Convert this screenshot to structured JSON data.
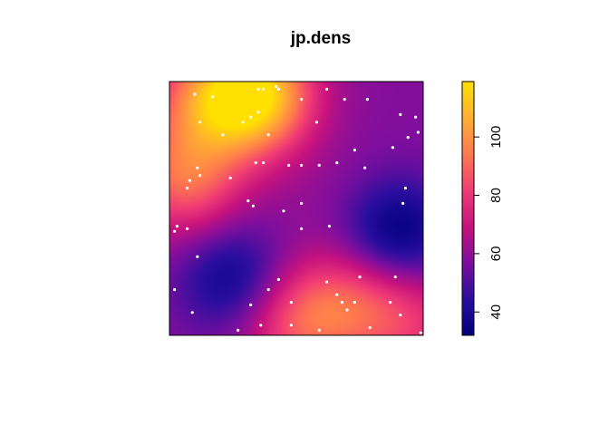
{
  "chart_data": {
    "type": "heatmap",
    "title": "jp.dens",
    "xlabel": "",
    "ylabel": "",
    "axes_shown": false,
    "colorbar": {
      "position": "right",
      "range": [
        32,
        119
      ],
      "ticks": [
        40,
        60,
        80,
        100
      ],
      "tick_labels": [
        "40",
        "60",
        "80",
        "100"
      ],
      "palette": [
        "#00007F",
        "#2A0E9E",
        "#7D0E9E",
        "#C7127E",
        "#F03C74",
        "#FF7A4E",
        "#FFAE32",
        "#FFE000"
      ]
    },
    "points": {
      "marker": "small white dot",
      "color": "#FFFFFF",
      "count": 68,
      "coordinates": [
        [
          0.42,
          0.98
        ],
        [
          0.35,
          0.97
        ],
        [
          0.37,
          0.97
        ],
        [
          0.43,
          0.97
        ],
        [
          0.1,
          0.95
        ],
        [
          0.17,
          0.94
        ],
        [
          0.62,
          0.97
        ],
        [
          0.69,
          0.93
        ],
        [
          0.78,
          0.93
        ],
        [
          0.52,
          0.93
        ],
        [
          0.97,
          0.86
        ],
        [
          0.91,
          0.87
        ],
        [
          0.12,
          0.84
        ],
        [
          0.29,
          0.84
        ],
        [
          0.32,
          0.86
        ],
        [
          0.35,
          0.88
        ],
        [
          0.58,
          0.84
        ],
        [
          0.21,
          0.79
        ],
        [
          0.39,
          0.79
        ],
        [
          0.98,
          0.8
        ],
        [
          0.94,
          0.78
        ],
        [
          0.88,
          0.74
        ],
        [
          0.73,
          0.73
        ],
        [
          0.34,
          0.68
        ],
        [
          0.37,
          0.68
        ],
        [
          0.47,
          0.67
        ],
        [
          0.52,
          0.67
        ],
        [
          0.59,
          0.67
        ],
        [
          0.66,
          0.68
        ],
        [
          0.11,
          0.66
        ],
        [
          0.12,
          0.63
        ],
        [
          0.24,
          0.62
        ],
        [
          0.77,
          0.66
        ],
        [
          0.08,
          0.61
        ],
        [
          0.07,
          0.58
        ],
        [
          0.93,
          0.58
        ],
        [
          0.31,
          0.53
        ],
        [
          0.33,
          0.51
        ],
        [
          0.52,
          0.52
        ],
        [
          0.45,
          0.49
        ],
        [
          0.92,
          0.52
        ],
        [
          0.63,
          0.43
        ],
        [
          0.52,
          0.42
        ],
        [
          0.03,
          0.43
        ],
        [
          0.07,
          0.42
        ],
        [
          0.02,
          0.41
        ],
        [
          0.11,
          0.31
        ],
        [
          0.75,
          0.23
        ],
        [
          0.89,
          0.23
        ],
        [
          0.43,
          0.22
        ],
        [
          0.62,
          0.21
        ],
        [
          0.66,
          0.16
        ],
        [
          0.02,
          0.18
        ],
        [
          0.39,
          0.18
        ],
        [
          0.68,
          0.13
        ],
        [
          0.73,
          0.13
        ],
        [
          0.87,
          0.13
        ],
        [
          0.48,
          0.13
        ],
        [
          0.09,
          0.09
        ],
        [
          0.36,
          0.04
        ],
        [
          0.48,
          0.04
        ],
        [
          0.91,
          0.08
        ],
        [
          0.79,
          0.03
        ],
        [
          0.99,
          0.01
        ],
        [
          0.27,
          0.02
        ],
        [
          0.59,
          0.02
        ],
        [
          0.7,
          0.1
        ],
        [
          0.32,
          0.12
        ]
      ]
    },
    "density_surface": {
      "description_free": true,
      "peaks": [
        {
          "x": 0.33,
          "y": 0.95,
          "value": 119
        },
        {
          "x": 0.06,
          "y": 0.62,
          "value": 90
        },
        {
          "x": 0.5,
          "y": 0.05,
          "value": 84
        },
        {
          "x": 0.72,
          "y": 0.12,
          "value": 80
        },
        {
          "x": 0.13,
          "y": 0.92,
          "value": 82
        },
        {
          "x": 0.95,
          "y": 0.05,
          "value": 76
        }
      ],
      "troughs": [
        {
          "x": 0.9,
          "y": 0.4,
          "value": 32
        },
        {
          "x": 0.25,
          "y": 0.22,
          "value": 36
        },
        {
          "x": 0.6,
          "y": 0.55,
          "value": 60
        }
      ],
      "baseline": 58
    }
  }
}
